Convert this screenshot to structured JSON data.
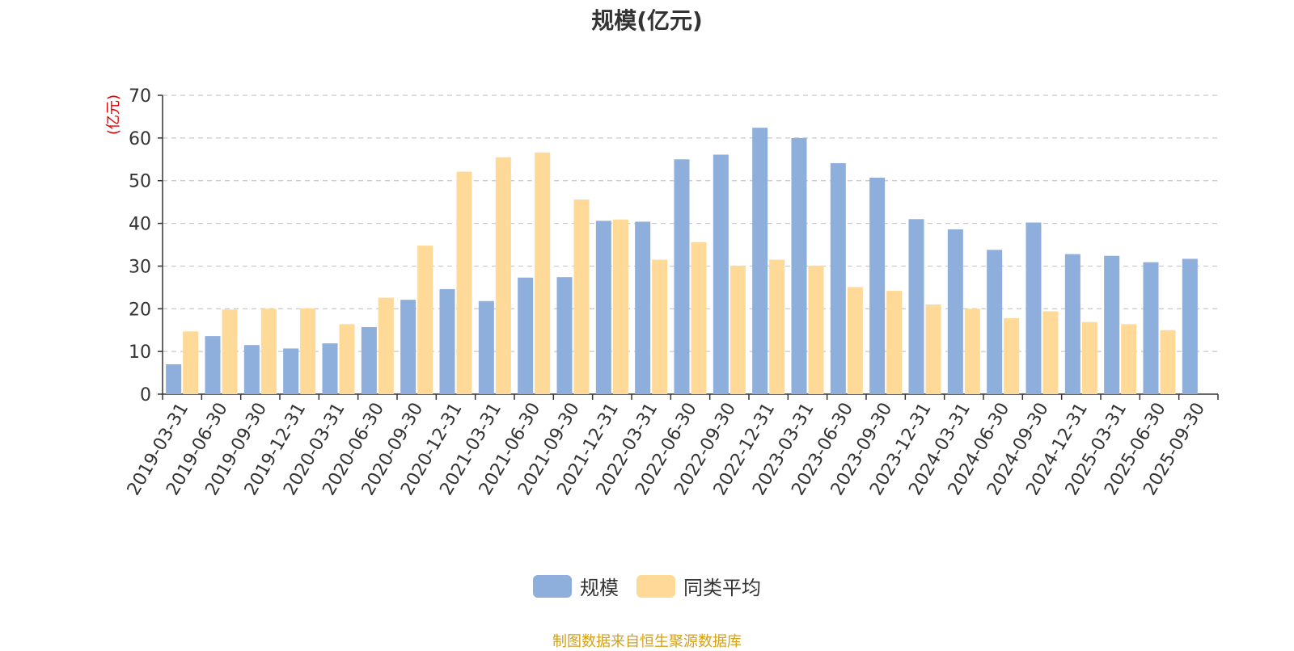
{
  "chart_data": {
    "type": "bar",
    "title": "规模(亿元)",
    "ylabel": "(亿元)",
    "ylim": [
      0,
      70
    ],
    "yticks": [
      0,
      10,
      20,
      30,
      40,
      50,
      60,
      70
    ],
    "grid": true,
    "legend_position": "bottom",
    "categories": [
      "2019-03-31",
      "2019-06-30",
      "2019-09-30",
      "2019-12-31",
      "2020-03-31",
      "2020-06-30",
      "2020-09-30",
      "2020-12-31",
      "2021-03-31",
      "2021-06-30",
      "2021-09-30",
      "2021-12-31",
      "2022-03-31",
      "2022-06-30",
      "2022-09-30",
      "2022-12-31",
      "2023-03-31",
      "2023-06-30",
      "2023-09-30",
      "2023-12-31",
      "2024-03-31",
      "2024-06-30",
      "2024-09-30",
      "2024-12-31",
      "2025-03-31",
      "2025-06-30",
      "2025-09-30"
    ],
    "series": [
      {
        "name": "规模",
        "color": "#8eaedb",
        "values": [
          7.0,
          13.6,
          11.5,
          10.7,
          11.9,
          15.7,
          22.1,
          24.6,
          21.8,
          27.3,
          27.4,
          40.6,
          40.4,
          55.0,
          56.1,
          62.4,
          60.0,
          54.1,
          50.7,
          41.0,
          38.6,
          33.8,
          40.2,
          32.8,
          32.4,
          30.9,
          31.7
        ]
      },
      {
        "name": "同类平均",
        "color": "#fed998",
        "values": [
          14.7,
          19.8,
          20.0,
          20.1,
          16.4,
          22.6,
          34.8,
          52.1,
          55.5,
          56.6,
          45.6,
          40.9,
          31.5,
          35.6,
          30.1,
          31.5,
          30.1,
          25.1,
          24.2,
          21.0,
          20.0,
          17.8,
          19.4,
          16.9,
          16.4,
          15.0,
          null
        ]
      }
    ]
  },
  "legend": {
    "items": [
      {
        "label": "规模",
        "color": "#8eaedb"
      },
      {
        "label": "同类平均",
        "color": "#fed998"
      }
    ]
  },
  "source_note": "制图数据来自恒生聚源数据库"
}
